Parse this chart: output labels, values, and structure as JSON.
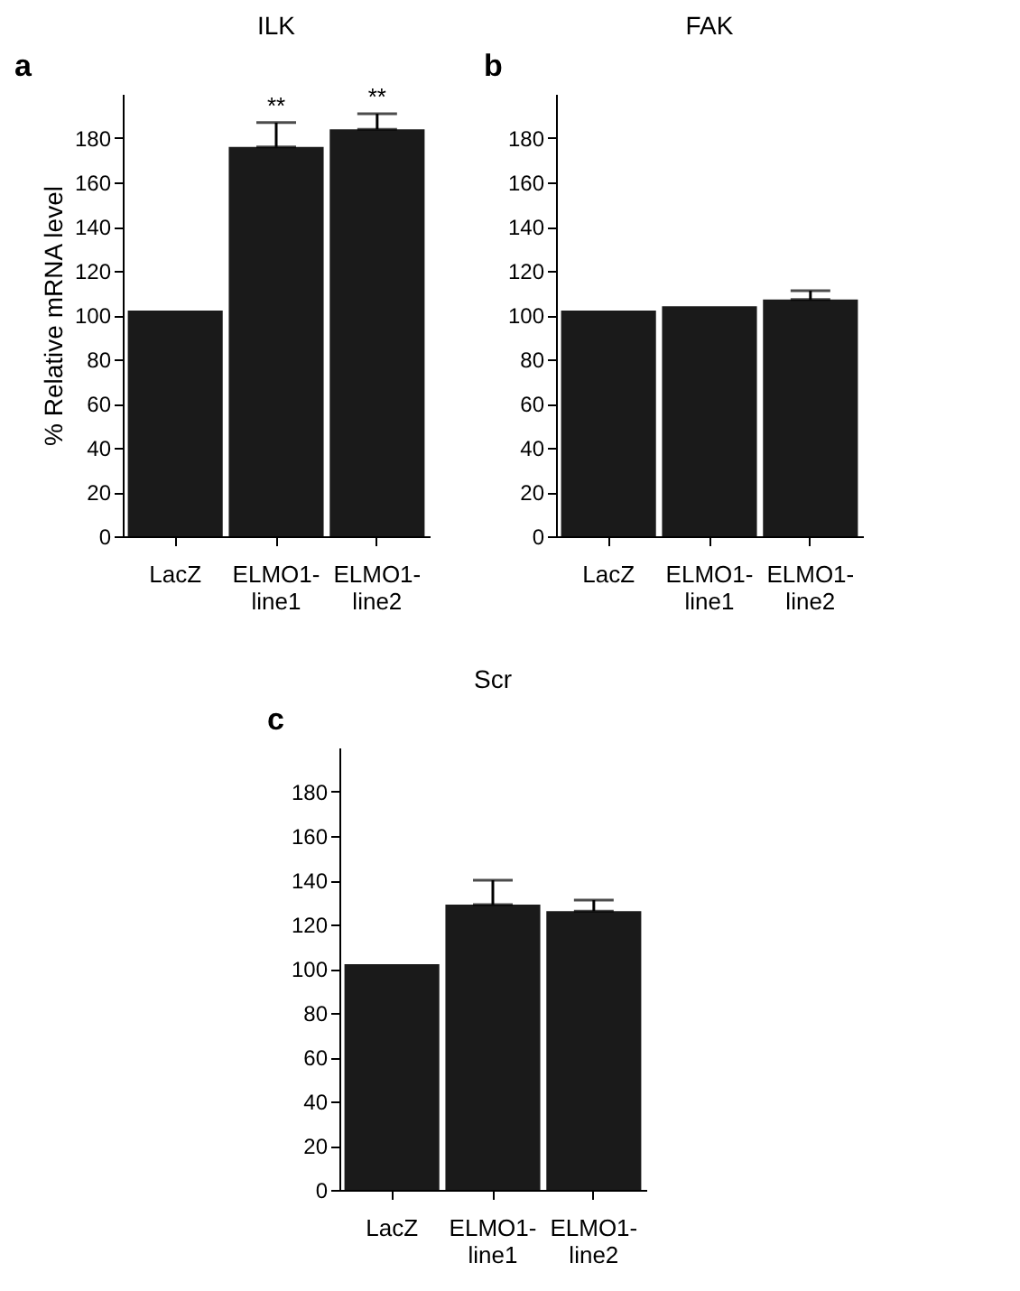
{
  "chart_data": [
    {
      "type": "bar",
      "title": "ILK",
      "ylabel": "% Relative mRNA level",
      "categories": [
        "LacZ",
        "ELMO1-line1",
        "ELMO1-line2"
      ],
      "values": [
        102,
        176,
        184
      ],
      "errors": [
        null,
        [
          176,
          187
        ],
        [
          184,
          191
        ]
      ],
      "color": "#1a1a1a",
      "ylim": [
        0,
        200
      ],
      "yticks": [
        0,
        20,
        40,
        60,
        80,
        100,
        120,
        140,
        160,
        180
      ],
      "grid": false,
      "annotations": [
        "a",
        {
          "text": "**",
          "x": "ELMO1-line1",
          "y": 187
        },
        {
          "text": "**",
          "x": "ELMO1-line2",
          "y": 191
        }
      ]
    },
    {
      "type": "bar",
      "title": "FAK",
      "categories": [
        "LacZ",
        "ELMO1-line1",
        "ELMO1-line2"
      ],
      "values": [
        102,
        104,
        107
      ],
      "errors": [
        null,
        null,
        [
          107,
          111
        ]
      ],
      "color": "#1a1a1a",
      "ylim": [
        0,
        200
      ],
      "yticks": [
        0,
        20,
        40,
        60,
        80,
        100,
        120,
        140,
        160,
        180
      ],
      "grid": false,
      "annotations": [
        "b"
      ]
    },
    {
      "type": "bar",
      "title": "Scr",
      "categories": [
        "LacZ",
        "ELMO1-line1",
        "ELMO1-line2"
      ],
      "values": [
        102,
        129,
        126
      ],
      "errors": [
        null,
        [
          129,
          140
        ],
        [
          126,
          131
        ]
      ],
      "color": "#1a1a1a",
      "ylim": [
        0,
        200
      ],
      "yticks": [
        0,
        20,
        40,
        60,
        80,
        100,
        120,
        140,
        160,
        180
      ],
      "grid": false,
      "annotations": [
        "c"
      ]
    }
  ]
}
